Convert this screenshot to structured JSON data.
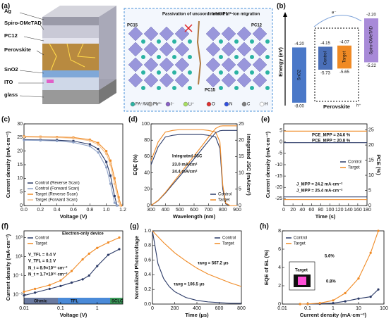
{
  "panel_a": {
    "label": "(a)",
    "layers": [
      "Ag",
      "Spiro-OMeTAD",
      "PC12",
      "Perovskite",
      "SnO2",
      "ITO",
      "glass"
    ],
    "notes": [
      "Passivation of uncoordinated Pb²⁺",
      "Inhibit Li⁺-ion migration",
      "PC15",
      "PC12",
      "PC15"
    ],
    "legend": [
      "FA⁺/MA⁺",
      "Pb²⁺",
      "I⁻",
      "Li⁺",
      "O",
      "N",
      "C",
      "H"
    ]
  },
  "panel_b": {
    "label": "(b)",
    "ylabel": "Energy (eV)",
    "group": "Perovskite",
    "charges": [
      "e⁻",
      "h⁺"
    ],
    "levels": [
      {
        "name": "SnO2",
        "top": "-4.20",
        "bottom": "-8.00"
      },
      {
        "name": "Control",
        "top": "-4.15",
        "bottom": "-5.73"
      },
      {
        "name": "Target",
        "top": "-4.07",
        "bottom": "-5.65"
      },
      {
        "name": "Spiro-OMeTAD",
        "top": "-2.20",
        "bottom": "-5.22"
      }
    ]
  },
  "chart_data": [
    {
      "type": "line",
      "label": "(c)",
      "xlabel": "Voltage (V)",
      "ylabel": "Current density (mA·cm⁻²)",
      "xlim": [
        0,
        1.2
      ],
      "ylim": [
        0,
        30
      ],
      "xticks": [
        {
          "value": 0,
          "label": "0.0"
        },
        0.2,
        0.4,
        0.6,
        0.8,
        {
          "value": 1,
          "label": "1.0"
        },
        1.2
      ],
      "yticks": [
        0,
        5,
        10,
        15,
        20,
        25,
        30
      ],
      "legend": "lower left",
      "x": [
        0,
        0.2,
        0.4,
        0.6,
        0.8,
        0.9,
        1,
        1.05,
        1.1,
        1.13
      ],
      "series": [
        {
          "name": "Control (Reverse Scan)",
          "color": "#2b3a67",
          "marker": "square",
          "values": [
            24.2,
            24.1,
            24,
            23.7,
            22.5,
            20.8,
            16,
            11,
            3.5,
            0
          ]
        },
        {
          "name": "Control (Forward Scan)",
          "color": "#8fa3c8",
          "marker": "circle",
          "values": [
            24,
            23.9,
            23.7,
            23.2,
            21.8,
            19.5,
            14,
            8,
            1,
            0
          ]
        },
        {
          "name": "Target (Reverse Scan)",
          "color": "#f08a24",
          "marker": "square",
          "x": [
            0,
            0.2,
            0.4,
            0.6,
            0.8,
            0.9,
            1,
            1.05,
            1.1,
            1.15,
            1.18
          ],
          "values": [
            25.4,
            25.3,
            25.2,
            25,
            24.2,
            23,
            20,
            16.5,
            10,
            3,
            0
          ]
        },
        {
          "name": "Target (Forward Scan)",
          "color": "#f5c08a",
          "marker": "circle",
          "x": [
            0,
            0.2,
            0.4,
            0.6,
            0.8,
            0.9,
            1,
            1.05,
            1.1,
            1.15,
            1.17
          ],
          "values": [
            25.2,
            25.1,
            25,
            24.7,
            23.8,
            22.4,
            19,
            15,
            8,
            1.5,
            0
          ]
        }
      ]
    },
    {
      "type": "line",
      "label": "(d)",
      "xlabel": "Wavelength (nm)",
      "ylabel": "EQE (%)",
      "y2label": "Integrated JSC (mA/cm²)",
      "xlim": [
        300,
        900
      ],
      "ylim": [
        0,
        100
      ],
      "y2lim": [
        0,
        25
      ],
      "xticks": [
        300,
        400,
        500,
        600,
        700,
        800,
        900
      ],
      "yticks": [
        0,
        20,
        40,
        60,
        80,
        100
      ],
      "y2ticks": [
        0,
        5,
        10,
        15,
        20,
        25
      ],
      "legend": "lower right",
      "annotations": [
        "Integrated JSC",
        "23.0 mA/cm²",
        "24.4 mA/cm²"
      ],
      "x": [
        300,
        350,
        400,
        450,
        500,
        550,
        600,
        650,
        700,
        750,
        780,
        800,
        820,
        850,
        900
      ],
      "series": [
        {
          "name": "Control",
          "color": "#2b3a67",
          "values": [
            50,
            72,
            84,
            86,
            87,
            87,
            87,
            87,
            86,
            84,
            70,
            20,
            2,
            0,
            0
          ]
        },
        {
          "name": "Target",
          "color": "#f08a24",
          "values": [
            55,
            78,
            90,
            92,
            93,
            93,
            93,
            93,
            92,
            90,
            78,
            25,
            3,
            0,
            0
          ]
        },
        {
          "color": "#2b3a67",
          "axis": "y2",
          "values": [
            0,
            1.5,
            3.8,
            6.4,
            9,
            11.6,
            14.3,
            17,
            19.7,
            22.3,
            22.9,
            23,
            23,
            23,
            23
          ]
        },
        {
          "color": "#f08a24",
          "axis": "y2",
          "values": [
            0,
            1.6,
            4,
            6.8,
            9.6,
            12.4,
            15.2,
            18,
            20.9,
            23.6,
            24.3,
            24.4,
            24.4,
            24.4,
            24.4
          ]
        }
      ]
    },
    {
      "type": "line",
      "label": "(e)",
      "xlabel": "Time (s)",
      "ylabel": "Current density (mA·cm⁻²)",
      "y2label": "PCE (%)",
      "xlim": [
        0,
        180
      ],
      "ylim": [
        -28,
        8
      ],
      "y2lim": [
        0,
        27
      ],
      "xticks": [
        0,
        20,
        40,
        60,
        80,
        100,
        120,
        140,
        160,
        180
      ],
      "yticks": [
        -25,
        -20,
        -15,
        -10,
        -5,
        0,
        5
      ],
      "y2ticks": [
        0,
        5,
        10,
        15,
        20,
        25
      ],
      "legend": "center right",
      "annotations": [
        "PCE_MPP = 20.8 %",
        "PCE_MPP = 24.6 %",
        "J_MPP = 24.2 mA·cm⁻²",
        "J_MPP = 25.4 mA·cm⁻²"
      ],
      "x": [
        0,
        30,
        60,
        90,
        120,
        150,
        180
      ],
      "series": [
        {
          "name": "Control",
          "color": "#2b3a67",
          "axis": "y2",
          "values": [
            20.8,
            20.8,
            20.8,
            20.8,
            20.8,
            20.8,
            20.8
          ]
        },
        {
          "name": "Target",
          "color": "#f08a24",
          "axis": "y2",
          "values": [
            24.6,
            24.6,
            24.6,
            24.6,
            24.6,
            24.6,
            24.6
          ]
        },
        {
          "color": "#2b3a67",
          "values": [
            -24.2,
            -24.2,
            -24.2,
            -24.2,
            -24.2,
            -24.2,
            -24.2
          ]
        },
        {
          "color": "#f08a24",
          "values": [
            -25.4,
            -25.4,
            -25.4,
            -25.4,
            -25.4,
            -25.4,
            -25.4
          ]
        }
      ]
    },
    {
      "type": "line",
      "label": "(f)",
      "xlabel": "Voltage (V)",
      "ylabel": "Current density (mA·cm⁻²)",
      "xlog": true,
      "ylog": true,
      "xlim": [
        0.01,
        5
      ],
      "ylim": [
        0.0001,
        5000
      ],
      "xticks": [
        0.01,
        0.1,
        1
      ],
      "yticks": [
        {
          "value": 0.001,
          "label": "10⁻³"
        },
        {
          "value": 0.1,
          "label": "10⁻¹"
        },
        {
          "value": 10,
          "label": "10¹"
        },
        {
          "value": 1000,
          "label": "10³"
        }
      ],
      "legend": "upper left",
      "annotations": [
        "Electron-only device",
        "V_TFL = 0.4 V",
        "V_TFL = 0.1 V",
        "N_t = 8.9×10¹⁵ cm⁻³",
        "N_t = 1.7×10¹⁵ cm⁻³",
        "Ohmic",
        "TFL",
        "SCLC"
      ],
      "x": [
        0.01,
        0.02,
        0.05,
        0.1,
        0.2,
        0.4,
        0.6,
        1,
        2,
        4
      ],
      "series": [
        {
          "name": "Control",
          "color": "#2b3a67",
          "marker": "circle",
          "values": [
            0.0008,
            0.0016,
            0.004,
            0.008,
            0.018,
            0.04,
            0.1,
            1,
            15,
            60
          ]
        },
        {
          "name": "Target",
          "color": "#f08a24",
          "marker": "circle",
          "values": [
            0.002,
            0.004,
            0.01,
            0.03,
            0.3,
            5,
            20,
            80,
            300,
            1000
          ]
        }
      ]
    },
    {
      "type": "line",
      "label": "(g)",
      "xlabel": "Time (μs)",
      "ylabel": "Normalized Photovoltage",
      "xlim": [
        0,
        800
      ],
      "ylim": [
        0,
        1
      ],
      "xticks": [
        0,
        200,
        400,
        600,
        800
      ],
      "yticks": [
        {
          "value": 0,
          "label": "0.0"
        },
        0.2,
        0.4,
        0.6,
        0.8,
        {
          "value": 1,
          "label": "1.0"
        }
      ],
      "legend": "upper right",
      "annotations": [
        "τavg = 567.2 μs",
        "τavg = 106.5 μs"
      ],
      "x": [
        0,
        50,
        100,
        150,
        200,
        300,
        400,
        500,
        600,
        700,
        800
      ],
      "series": [
        {
          "name": "Control",
          "color": "#2b3a67",
          "values": [
            1,
            0.55,
            0.35,
            0.24,
            0.17,
            0.09,
            0.05,
            0.03,
            0.02,
            0.01,
            0.01
          ]
        },
        {
          "name": "Target",
          "color": "#f08a24",
          "values": [
            1,
            0.92,
            0.84,
            0.77,
            0.7,
            0.59,
            0.49,
            0.41,
            0.35,
            0.29,
            0.24
          ]
        }
      ]
    },
    {
      "type": "line",
      "label": "(h)",
      "xlabel": "Current density (mA·cm⁻²)",
      "ylabel": "EQE of EL (%)",
      "xlog": true,
      "xlim": [
        0.01,
        100
      ],
      "ylim": [
        0,
        8
      ],
      "xticks": [
        0.01,
        0.1,
        1,
        10,
        100
      ],
      "yticks": [
        0,
        2,
        4,
        6,
        8
      ],
      "legend": "upper left",
      "annotations": [
        "5.6%",
        "0.8%",
        "Target"
      ],
      "x": [
        0.05,
        0.1,
        0.3,
        1,
        3,
        10,
        30,
        60
      ],
      "series": [
        {
          "name": "Control",
          "color": "#2b3a67",
          "marker": "circle",
          "values": [
            0,
            0.01,
            0.03,
            0.1,
            0.3,
            0.6,
            0.8,
            1.6
          ]
        },
        {
          "name": "Target",
          "color": "#f08a24",
          "marker": "circle",
          "values": [
            0,
            0.02,
            0.1,
            0.4,
            1.2,
            2.8,
            5.6,
            8
          ]
        }
      ]
    }
  ]
}
